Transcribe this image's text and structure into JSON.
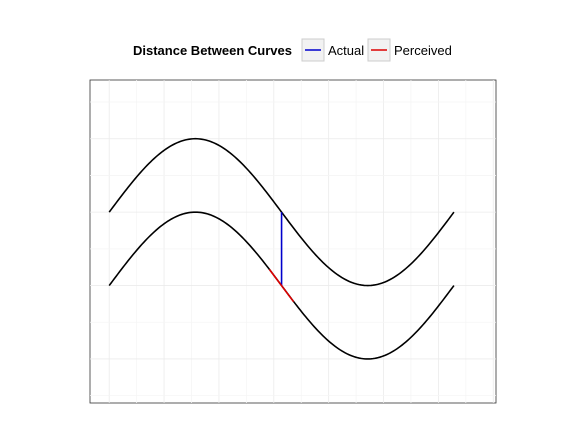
{
  "chart_data": {
    "type": "line",
    "title": "",
    "xlabel": "",
    "ylabel": "",
    "xlim": [
      -0.35,
      7.05
    ],
    "ylim": [
      -1.6,
      2.8
    ],
    "grid": true,
    "axes_ticks_visible": false,
    "legend": {
      "title": "Distance Between Curves",
      "placement": "top",
      "entries": [
        {
          "name": "Actual",
          "color": "#0000cc"
        },
        {
          "name": "Perceived",
          "color": "#dd0000"
        }
      ]
    },
    "curves": [
      {
        "function": "sin(x) + 1",
        "x_range": [
          0,
          6.28318
        ],
        "color": "#000000"
      },
      {
        "function": "sin(x)",
        "x_range": [
          0,
          6.28318
        ],
        "color": "#000000"
      }
    ],
    "series": [
      {
        "name": "Actual",
        "color": "#0000cc",
        "x": [
          3.14159,
          3.14159
        ],
        "y": [
          0.0,
          1.0
        ]
      },
      {
        "name": "Perceived",
        "color": "#dd0000",
        "x": [
          2.92,
          3.36
        ],
        "y": [
          0.22,
          -0.22
        ]
      }
    ]
  }
}
